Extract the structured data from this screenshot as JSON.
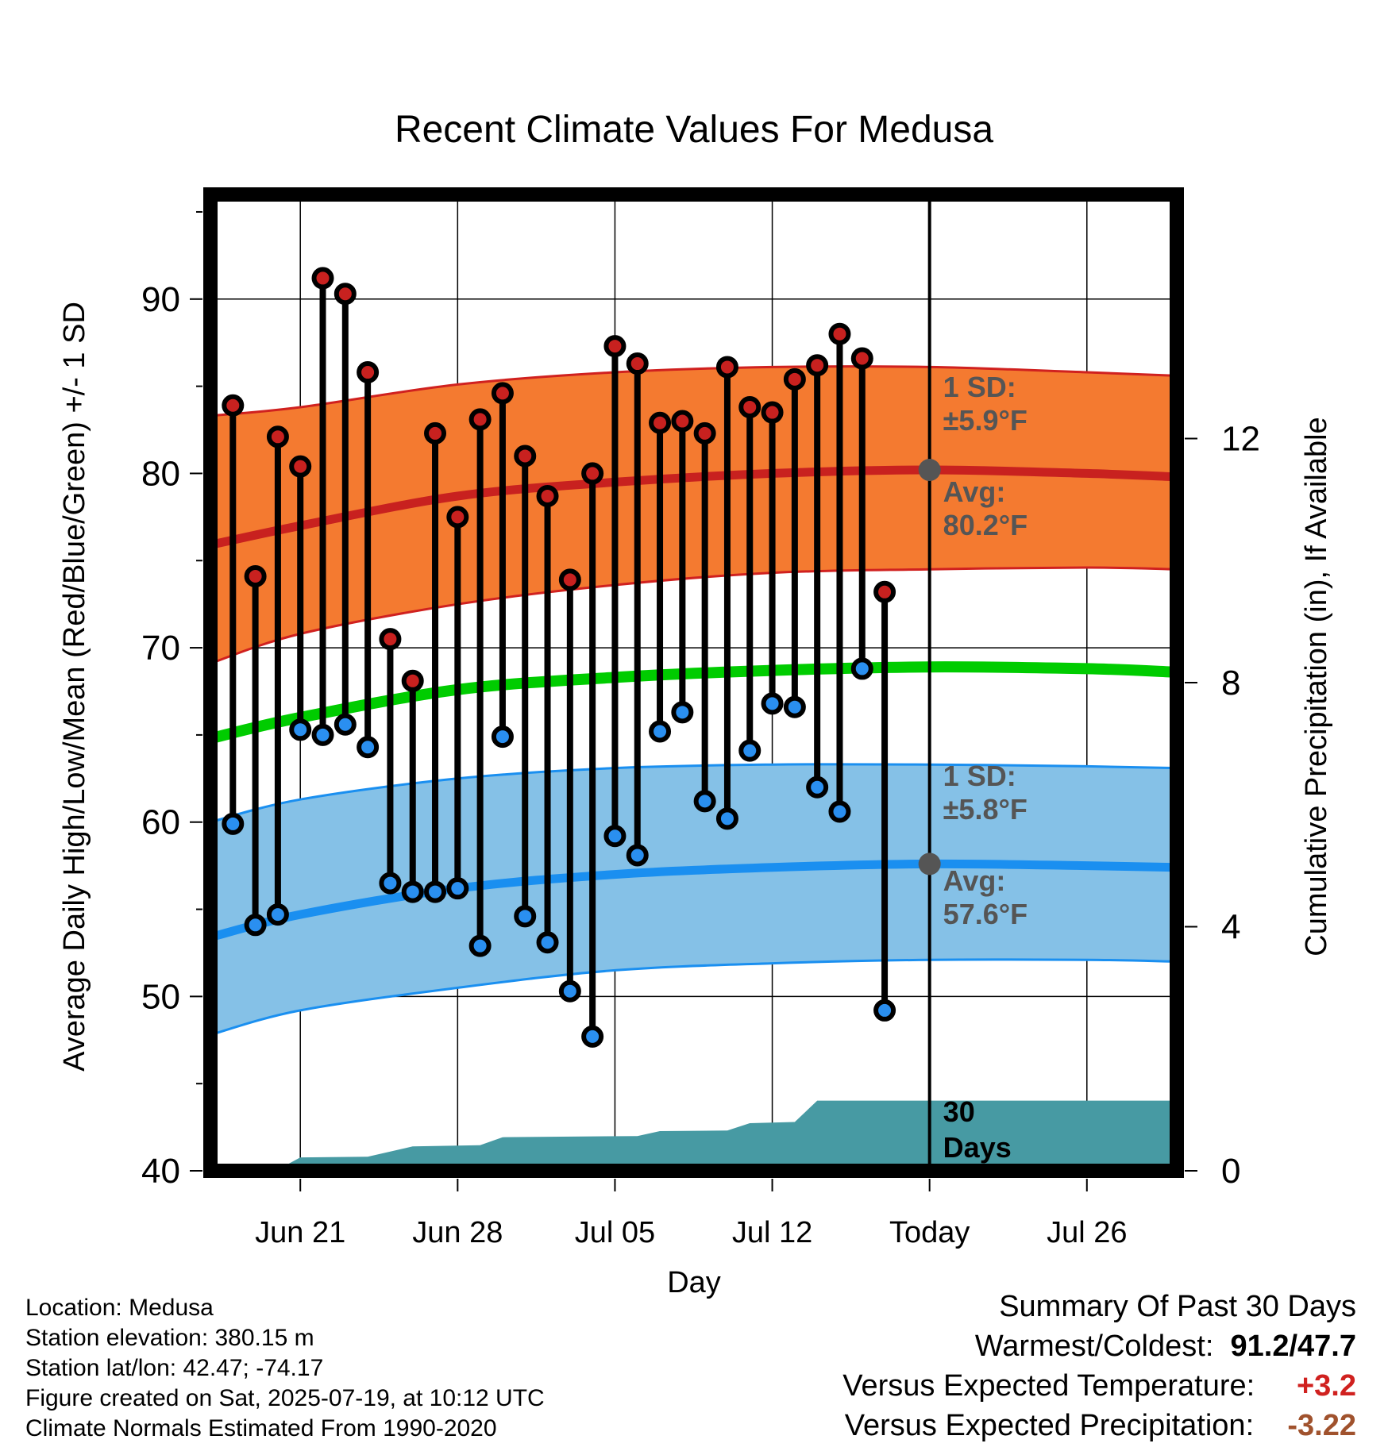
{
  "chart_data": {
    "type": "line",
    "title": "Recent Climate Values For Medusa",
    "xlabel": "Day",
    "ylabel": "Average Daily High/Low/Mean (Red/Blue/Green) +/- 1 SD",
    "y2label": "Cumulative Precipitation (in), If Available",
    "ylim": [
      40,
      96
    ],
    "y2lim": [
      0,
      16
    ],
    "yticks": [
      40,
      50,
      60,
      70,
      80,
      90
    ],
    "y2ticks": [
      0,
      4,
      8,
      12
    ],
    "xlim": [
      "2025-06-17",
      "2025-07-30"
    ],
    "xticks": [
      {
        "date": "2025-06-21",
        "label": "Jun 21"
      },
      {
        "date": "2025-06-28",
        "label": "Jun 28"
      },
      {
        "date": "2025-07-05",
        "label": "Jul 05"
      },
      {
        "date": "2025-07-12",
        "label": "Jul 12"
      },
      {
        "date": "2025-07-19",
        "label": "Today"
      },
      {
        "date": "2025-07-26",
        "label": "Jul 26"
      }
    ],
    "today": "2025-07-19",
    "window_label": "30 Days",
    "daily": [
      {
        "date": "2025-06-18",
        "high": 83.9,
        "low": 59.9
      },
      {
        "date": "2025-06-19",
        "high": 74.1,
        "low": 54.1
      },
      {
        "date": "2025-06-20",
        "high": 82.1,
        "low": 54.7
      },
      {
        "date": "2025-06-21",
        "high": 80.4,
        "low": 65.3
      },
      {
        "date": "2025-06-22",
        "high": 91.2,
        "low": 65.0
      },
      {
        "date": "2025-06-23",
        "high": 90.3,
        "low": 65.6
      },
      {
        "date": "2025-06-24",
        "high": 85.8,
        "low": 64.3
      },
      {
        "date": "2025-06-25",
        "high": 70.5,
        "low": 56.5
      },
      {
        "date": "2025-06-26",
        "high": 68.1,
        "low": 56.0
      },
      {
        "date": "2025-06-27",
        "high": 82.3,
        "low": 56.0
      },
      {
        "date": "2025-06-28",
        "high": 77.5,
        "low": 56.2
      },
      {
        "date": "2025-06-29",
        "high": 83.1,
        "low": 52.9
      },
      {
        "date": "2025-06-30",
        "high": 84.6,
        "low": 64.9
      },
      {
        "date": "2025-07-01",
        "high": 81.0,
        "low": 54.6
      },
      {
        "date": "2025-07-02",
        "high": 78.7,
        "low": 53.1
      },
      {
        "date": "2025-07-03",
        "high": 73.9,
        "low": 50.3
      },
      {
        "date": "2025-07-04",
        "high": 80.0,
        "low": 47.7
      },
      {
        "date": "2025-07-05",
        "high": 87.3,
        "low": 59.2
      },
      {
        "date": "2025-07-06",
        "high": 86.3,
        "low": 58.1
      },
      {
        "date": "2025-07-07",
        "high": 82.9,
        "low": 65.2
      },
      {
        "date": "2025-07-08",
        "high": 83.0,
        "low": 66.3
      },
      {
        "date": "2025-07-09",
        "high": 82.3,
        "low": 61.2
      },
      {
        "date": "2025-07-10",
        "high": 86.1,
        "low": 60.2
      },
      {
        "date": "2025-07-11",
        "high": 83.8,
        "low": 64.1
      },
      {
        "date": "2025-07-12",
        "high": 83.5,
        "low": 66.8
      },
      {
        "date": "2025-07-13",
        "high": 85.4,
        "low": 66.6
      },
      {
        "date": "2025-07-14",
        "high": 86.2,
        "low": 62.0
      },
      {
        "date": "2025-07-15",
        "high": 88.0,
        "low": 60.6
      },
      {
        "date": "2025-07-16",
        "high": 86.6,
        "low": 68.8
      },
      {
        "date": "2025-07-17",
        "high": 73.2,
        "low": 49.2
      }
    ],
    "normal_high": {
      "dates": [
        "2025-06-17",
        "2025-06-21",
        "2025-06-28",
        "2025-07-05",
        "2025-07-12",
        "2025-07-19",
        "2025-07-26",
        "2025-07-30"
      ],
      "avg": [
        75.9,
        77.0,
        78.7,
        79.5,
        80.0,
        80.2,
        80.0,
        79.8
      ],
      "lower": [
        69.1,
        70.8,
        72.5,
        73.6,
        74.3,
        74.5,
        74.6,
        74.5
      ],
      "upper": [
        83.3,
        83.8,
        85.1,
        85.8,
        86.1,
        86.1,
        85.8,
        85.6
      ]
    },
    "normal_mean": {
      "dates": [
        "2025-06-17",
        "2025-06-21",
        "2025-06-28",
        "2025-07-05",
        "2025-07-12",
        "2025-07-19",
        "2025-07-26",
        "2025-07-30"
      ],
      "avg": [
        64.8,
        66.0,
        67.6,
        68.3,
        68.7,
        68.9,
        68.8,
        68.6
      ]
    },
    "normal_low": {
      "dates": [
        "2025-06-17",
        "2025-06-21",
        "2025-06-28",
        "2025-07-05",
        "2025-07-12",
        "2025-07-19",
        "2025-07-26",
        "2025-07-30"
      ],
      "avg": [
        53.4,
        54.7,
        56.2,
        57.0,
        57.4,
        57.6,
        57.5,
        57.4
      ],
      "lower": [
        47.8,
        49.2,
        50.5,
        51.5,
        51.9,
        52.1,
        52.1,
        52.0
      ],
      "upper": [
        60.0,
        61.3,
        62.5,
        63.1,
        63.3,
        63.3,
        63.2,
        63.1
      ]
    },
    "precipitation": {
      "dates": [
        "2025-06-17",
        "2025-06-20",
        "2025-06-21",
        "2025-06-24",
        "2025-06-26",
        "2025-06-29",
        "2025-06-30",
        "2025-07-06",
        "2025-07-07",
        "2025-07-10",
        "2025-07-11",
        "2025-07-13",
        "2025-07-14",
        "2025-07-30"
      ],
      "cumulative": [
        0.0,
        0.02,
        0.22,
        0.23,
        0.4,
        0.42,
        0.55,
        0.57,
        0.65,
        0.66,
        0.78,
        0.8,
        1.15,
        1.15
      ]
    },
    "annotations": {
      "high_sd": {
        "line1": "1 SD:",
        "line2": "±5.9°F"
      },
      "high_avg": {
        "line1": "Avg:",
        "line2": "80.2°F"
      },
      "low_sd": {
        "line1": "1 SD:",
        "line2": "±5.8°F"
      },
      "low_avg": {
        "line1": "Avg:",
        "line2": "57.6°F"
      }
    },
    "colors": {
      "high_band": "#f47a30",
      "high_edge": "#d0211f",
      "high_line": "#c8211f",
      "low_band": "#85c1e7",
      "low_edge": "#1a8ff0",
      "low_line": "#1a8ff0",
      "mean_line": "#00cc00",
      "precip": "#479aa3",
      "high_marker": "#c8211f",
      "low_marker": "#2a8ff0",
      "annotation": "#555555"
    }
  },
  "info": {
    "location": "Location: Medusa",
    "elevation": "Station elevation: 380.15 m",
    "latlon": "Station lat/lon: 42.47; -74.17",
    "created": "Figure created on Sat, 2025-07-19, at 10:12 UTC",
    "normals": "Climate Normals Estimated From 1990-2020"
  },
  "summary": {
    "title": "Summary Of Past 30 Days",
    "warm_cold_label": "Warmest/Coldest:",
    "warm_cold_value": "91.2/47.7",
    "temp_label": "Versus Expected Temperature:",
    "temp_value": "+3.2",
    "temp_color": "#d0211f",
    "precip_label": "Versus Expected Precipitation:",
    "precip_value": "-3.22",
    "precip_color": "#a0522d"
  }
}
